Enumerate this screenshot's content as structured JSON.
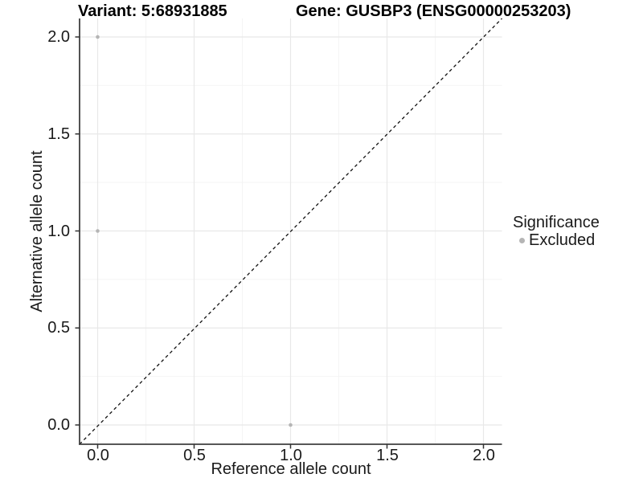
{
  "chart_data": {
    "type": "scatter",
    "title_left": "Variant: 5:68931885",
    "title_right": "Gene: GUSBP3 (ENSG00000253203)",
    "xlabel": "Reference allele count",
    "ylabel": "Alternative allele count",
    "xlim": [
      -0.1,
      2.1
    ],
    "ylim": [
      -0.1,
      2.1
    ],
    "x_ticks": {
      "values": [
        0,
        0.5,
        1,
        1.5,
        2
      ],
      "labels": [
        "0.0",
        "0.5",
        "1.0",
        "1.5",
        "2.0"
      ]
    },
    "y_ticks": {
      "values": [
        0,
        0.5,
        1,
        1.5,
        2
      ],
      "labels": [
        "0.0",
        "0.5",
        "1.0",
        "1.5",
        "2.0"
      ]
    },
    "x_minor_ticks": [
      0.25,
      0.75,
      1.25,
      1.75
    ],
    "y_minor_ticks": [
      0.25,
      0.75,
      1.25,
      1.75
    ],
    "grid": "major+minor",
    "identity_line": {
      "style": "dashed",
      "from": [
        -0.1,
        -0.1
      ],
      "to": [
        2.1,
        2.1
      ],
      "color": "#111111"
    },
    "series": [
      {
        "name": "Excluded",
        "color": "#b5b5b5",
        "points": [
          {
            "x": 0,
            "y": 2
          },
          {
            "x": 0,
            "y": 1
          },
          {
            "x": 1,
            "y": 0
          }
        ]
      }
    ],
    "legend": {
      "title": "Significance",
      "position": "right",
      "entries": [
        {
          "label": "Excluded",
          "color": "#b5b5b5"
        }
      ]
    },
    "colors": {
      "background": "#ffffff",
      "grid_major": "#e8e8e8",
      "grid_minor": "#f4f4f4",
      "axis_line": "#3f3f3f",
      "point": "#b5b5b5",
      "text": "#1a1a1a"
    }
  }
}
